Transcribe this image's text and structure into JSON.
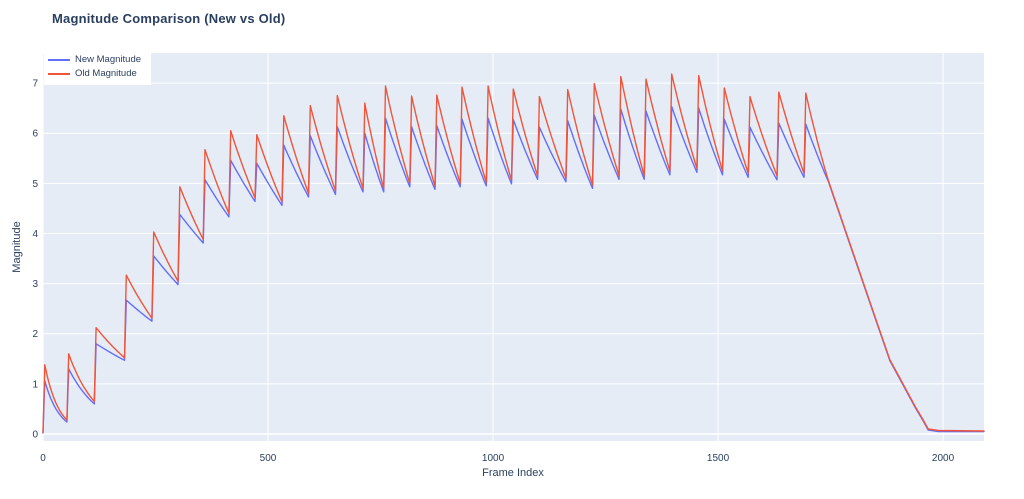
{
  "chart_data": {
    "type": "line",
    "title": "Magnitude Comparison (New vs Old)",
    "xlabel": "Frame Index",
    "ylabel": "Magnitude",
    "x_ticks": [
      0,
      500,
      1000,
      1500,
      2000
    ],
    "y_ticks": [
      0,
      1,
      2,
      3,
      4,
      5,
      6,
      7
    ],
    "xlim": [
      0,
      2091
    ],
    "ylim": [
      -0.14,
      7.6
    ],
    "grid": true,
    "legend_position": "top-left-inside",
    "plot_bg": "#e5ecf6",
    "grid_color": "#ffffff",
    "text_color": "#2a3f5f",
    "series": [
      {
        "key": "new",
        "name": "New Magnitude",
        "color": "#636efa",
        "start_value": 0.02
      },
      {
        "key": "old",
        "name": "Old Magnitude",
        "color": "#ef553b",
        "start_value": 0.03
      }
    ],
    "sawtooth_teeth": {
      "columns": [
        "start_frame",
        "old_peak",
        "new_peak",
        "old_trough_end",
        "new_trough_end"
      ],
      "rows": [
        [
          0,
          1.38,
          1.06,
          0.28,
          0.24
        ],
        [
          53,
          1.6,
          1.3,
          0.65,
          0.6
        ],
        [
          114,
          2.12,
          1.8,
          1.52,
          1.47
        ],
        [
          181,
          3.17,
          2.67,
          2.31,
          2.25
        ],
        [
          242,
          4.03,
          3.55,
          3.05,
          2.98
        ],
        [
          300,
          4.93,
          4.38,
          3.88,
          3.81
        ],
        [
          356,
          5.67,
          5.07,
          4.4,
          4.33
        ],
        [
          413,
          6.05,
          5.46,
          4.71,
          4.64
        ],
        [
          471,
          5.97,
          5.4,
          4.63,
          4.56
        ],
        [
          531,
          6.35,
          5.76,
          4.8,
          4.73
        ],
        [
          590,
          6.55,
          5.95,
          4.85,
          4.78
        ],
        [
          650,
          6.75,
          6.13,
          4.9,
          4.83
        ],
        [
          711,
          6.6,
          6.0,
          4.9,
          4.83
        ],
        [
          757,
          6.94,
          6.3,
          5.0,
          4.93
        ],
        [
          815,
          6.74,
          6.13,
          4.95,
          4.88
        ],
        [
          871,
          6.76,
          6.15,
          5.0,
          4.93
        ],
        [
          927,
          6.92,
          6.28,
          5.02,
          4.95
        ],
        [
          985,
          6.94,
          6.3,
          5.06,
          4.99
        ],
        [
          1041,
          6.88,
          6.27,
          5.15,
          5.08
        ],
        [
          1099,
          6.73,
          6.12,
          5.1,
          5.03
        ],
        [
          1162,
          6.87,
          6.25,
          4.97,
          4.9
        ],
        [
          1221,
          6.99,
          6.36,
          5.15,
          5.08
        ],
        [
          1280,
          7.13,
          6.48,
          5.15,
          5.08
        ],
        [
          1336,
          7.08,
          6.44,
          5.25,
          5.17
        ],
        [
          1393,
          7.18,
          6.53,
          5.3,
          5.22
        ],
        [
          1453,
          7.15,
          6.5,
          5.25,
          5.17
        ],
        [
          1510,
          6.9,
          6.28,
          5.2,
          5.12
        ],
        [
          1567,
          6.73,
          6.12,
          5.15,
          5.07
        ],
        [
          1631,
          6.82,
          6.2,
          5.2,
          5.12
        ],
        [
          1691,
          6.8,
          6.18,
          5.06,
          5.04
        ]
      ]
    },
    "tail": {
      "start_frame": 1745,
      "old": [
        [
          1745,
          5.06
        ],
        [
          1800,
          3.62
        ],
        [
          1850,
          2.31
        ],
        [
          1882,
          1.48
        ],
        [
          1910,
          1.02
        ],
        [
          1940,
          0.52
        ],
        [
          1956,
          0.28
        ],
        [
          1967,
          0.1
        ],
        [
          1990,
          0.07
        ],
        [
          2091,
          0.06
        ]
      ],
      "new": [
        [
          1745,
          5.04
        ],
        [
          1800,
          3.6
        ],
        [
          1850,
          2.29
        ],
        [
          1882,
          1.46
        ],
        [
          1910,
          1.0
        ],
        [
          1940,
          0.5
        ],
        [
          1956,
          0.26
        ],
        [
          1967,
          0.08
        ],
        [
          1990,
          0.05
        ],
        [
          2091,
          0.05
        ]
      ]
    }
  }
}
